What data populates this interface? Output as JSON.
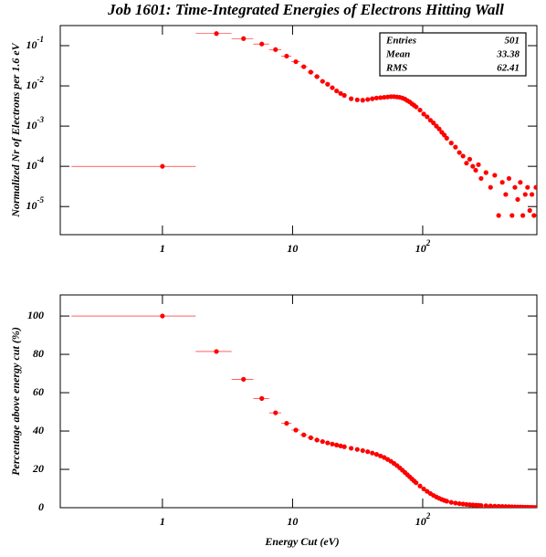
{
  "chart_data": [
    {
      "type": "scatter",
      "title": "Job 1601: Time-Integrated Energies of Electrons Hitting Wall",
      "y_label": "Normalized Nr of Electrons per 1.6 eV",
      "xlog": true,
      "ylog": true,
      "color": "#ff0000",
      "xerr": 0.8,
      "xlim": [
        0.164,
        754
      ],
      "ylim": [
        2e-06,
        0.316
      ],
      "xticks": [
        1,
        10,
        {
          "value": 100,
          "label": "10",
          "exponent": "2"
        }
      ],
      "yticks": [
        {
          "value": 0.1,
          "label": "10",
          "exponent": "-1"
        },
        {
          "value": 0.01,
          "label": "10",
          "exponent": "-2"
        },
        {
          "value": 0.001,
          "label": "10",
          "exponent": "-3"
        },
        {
          "value": 0.0001,
          "label": "10",
          "exponent": "-4"
        },
        {
          "value": 1e-05,
          "label": "10",
          "exponent": "-5"
        }
      ],
      "stats": [
        {
          "label": "Entries",
          "value": 501
        },
        {
          "label": "Mean",
          "value": 33.38
        },
        {
          "label": "RMS",
          "value": 62.41
        }
      ],
      "x": [
        1,
        2.6,
        4.2,
        5.8,
        7.4,
        9,
        10.6,
        12.2,
        13.8,
        15.4,
        17,
        18.6,
        20.2,
        21.8,
        23.4,
        25,
        28.2,
        31.4,
        34.6,
        37.8,
        41,
        44.2,
        47.4,
        50.6,
        53.8,
        57,
        60.2,
        63.4,
        66.6,
        69.8,
        73,
        76.2,
        79.4,
        82.6,
        85.8,
        89,
        95.4,
        101.8,
        108.2,
        114.6,
        121,
        127.4,
        133.8,
        140.2,
        146.6,
        153,
        165.8,
        178.6,
        191.4,
        204.2,
        217,
        229.8,
        242.6,
        255.4,
        268.2,
        281,
        306.6,
        332.2,
        357.8,
        383.4,
        409,
        434.6,
        460.2,
        485.8,
        511.4,
        537,
        562.6,
        588.2,
        613.8,
        639.4,
        665,
        690.6,
        716.2,
        741.8
      ],
      "values": [
        0.0001,
        0.2,
        0.15,
        0.11,
        0.08,
        0.055,
        0.04,
        0.03,
        0.022,
        0.017,
        0.013,
        0.011,
        0.009,
        0.0075,
        0.0065,
        0.0058,
        0.0048,
        0.0045,
        0.0044,
        0.0046,
        0.0048,
        0.005,
        0.0051,
        0.0052,
        0.0053,
        0.0054,
        0.0054,
        0.0053,
        0.0052,
        0.005,
        0.0047,
        0.0043,
        0.004,
        0.0036,
        0.0033,
        0.003,
        0.0025,
        0.002,
        0.0017,
        0.0014,
        0.0012,
        0.001,
        0.00085,
        0.0007,
        0.0006,
        0.0005,
        0.00038,
        0.0003,
        0.00022,
        0.00018,
        0.00012,
        0.00015,
        0.0001,
        8e-05,
        0.00011,
        5e-05,
        7e-05,
        3e-05,
        6e-05,
        6e-06,
        4e-05,
        2e-05,
        5e-05,
        6e-06,
        3e-05,
        1.5e-05,
        4e-05,
        6e-06,
        2e-05,
        3e-05,
        8e-06,
        2e-05,
        6e-06,
        3e-05
      ]
    },
    {
      "type": "scatter",
      "y_label": "Percentage above energy cut (%)",
      "x_label": "Energy Cut (eV)",
      "xlog": true,
      "ylog": false,
      "color": "#ff0000",
      "xerr": 0.8,
      "xlim": [
        0.164,
        754
      ],
      "ylim": [
        0,
        111
      ],
      "xticks": [
        1,
        10,
        {
          "value": 100,
          "label": "10",
          "exponent": "2"
        }
      ],
      "yticks": [
        0,
        20,
        40,
        60,
        80,
        100
      ],
      "x": [
        1,
        2.6,
        4.2,
        5.8,
        7.4,
        9,
        10.6,
        12.2,
        13.8,
        15.4,
        17,
        18.6,
        20.2,
        21.8,
        23.4,
        25,
        28.2,
        31.4,
        34.6,
        37.8,
        41,
        44.2,
        47.4,
        50.6,
        53.8,
        57,
        60.2,
        63.4,
        66.6,
        69.8,
        73,
        76.2,
        79.4,
        82.6,
        85.8,
        89,
        95.4,
        101.8,
        108.2,
        114.6,
        121,
        127.4,
        133.8,
        140.2,
        146.6,
        153,
        165.8,
        178.6,
        191.4,
        204.2,
        217,
        229.8,
        242.6,
        255.4,
        268.2,
        281,
        306.6,
        332.2,
        357.8,
        383.4,
        409,
        434.6,
        460.2,
        485.8,
        511.4,
        537,
        562.6,
        588.2,
        613.8,
        639.4,
        665,
        690.6,
        716.2,
        741.8
      ],
      "values": [
        100,
        81.5,
        67,
        57,
        49.5,
        44,
        40.5,
        38,
        36.5,
        35.3,
        34.5,
        33.8,
        33.2,
        32.7,
        32.2,
        31.8,
        31,
        30.4,
        29.8,
        29.2,
        28.5,
        27.8,
        27,
        26.2,
        25.2,
        24.2,
        23.1,
        22,
        20.8,
        19.6,
        18.4,
        17.2,
        16.1,
        15,
        14,
        13,
        11.3,
        9.8,
        8.5,
        7.4,
        6.4,
        5.6,
        4.9,
        4.3,
        3.8,
        3.4,
        2.8,
        2.4,
        2.1,
        1.9,
        1.7,
        1.55,
        1.45,
        1.35,
        1.25,
        1.15,
        1.0,
        0.9,
        0.8,
        0.72,
        0.65,
        0.58,
        0.52,
        0.47,
        0.42,
        0.38,
        0.34,
        0.3,
        0.27,
        0.24,
        0.21,
        0.18,
        0.15,
        0.12
      ]
    }
  ]
}
